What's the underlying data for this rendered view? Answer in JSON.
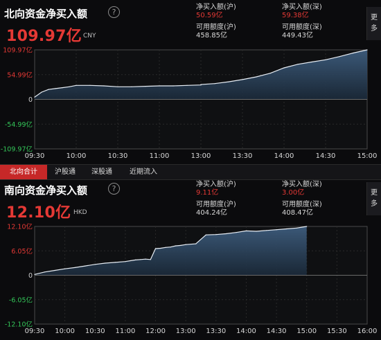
{
  "north": {
    "title": "北向资金净买入额",
    "help_glyph": "?",
    "amount": "109.97亿",
    "currency": "CNY",
    "sh_buy_label": "净买入额(沪)",
    "sh_buy_value": "50.59亿",
    "sz_buy_label": "净买入额(深)",
    "sz_buy_value": "59.38亿",
    "sh_quota_label": "可用额度(沪)",
    "sh_quota_value": "458.85亿",
    "sz_quota_label": "可用额度(深)",
    "sz_quota_value": "449.43亿",
    "more_label": "更多",
    "chart_data": {
      "type": "area",
      "y_ticks": [
        "109.97亿",
        "54.99亿",
        "0",
        "-54.99亿",
        "-109.97亿"
      ],
      "x_ticks": [
        "09:30",
        "10:00",
        "10:30",
        "11:00",
        "13:00",
        "13:30",
        "14:00",
        "14:30",
        "15:00"
      ],
      "ylim": [
        -109.97,
        109.97
      ],
      "y_unit": "亿",
      "x": [
        "09:30",
        "09:35",
        "09:40",
        "09:45",
        "09:50",
        "09:55",
        "10:00",
        "10:10",
        "10:20",
        "10:30",
        "10:40",
        "10:50",
        "11:00",
        "11:10",
        "11:20",
        "11:30",
        "13:00",
        "13:10",
        "13:20",
        "13:30",
        "13:40",
        "13:50",
        "14:00",
        "14:10",
        "14:20",
        "14:30",
        "14:40",
        "14:50",
        "15:00"
      ],
      "values": [
        5,
        16,
        22,
        24,
        26,
        28,
        31,
        31,
        30,
        28,
        28,
        29,
        30,
        30,
        31,
        32,
        33,
        35,
        39,
        44,
        50,
        58,
        70,
        78,
        83,
        88,
        95,
        103,
        109.97
      ]
    }
  },
  "tabs": [
    "北向合计",
    "沪股通",
    "深股通",
    "近期流入"
  ],
  "south": {
    "title": "南向资金净买入额",
    "help_glyph": "?",
    "amount": "12.10亿",
    "currency": "HKD",
    "sh_buy_label": "净买入额(沪)",
    "sh_buy_value": "9.11亿",
    "sz_buy_label": "净买入额(深)",
    "sz_buy_value": "3.00亿",
    "sh_quota_label": "可用额度(沪)",
    "sh_quota_value": "404.24亿",
    "sz_quota_label": "可用额度(深)",
    "sz_quota_value": "408.47亿",
    "more_label": "更多",
    "chart_data": {
      "type": "area",
      "y_ticks": [
        "12.10亿",
        "6.05亿",
        "0",
        "-6.05亿",
        "-12.10亿"
      ],
      "x_ticks": [
        "09:30",
        "10:00",
        "10:30",
        "11:00",
        "12:00",
        "13:00",
        "13:30",
        "14:00",
        "14:30",
        "15:00",
        "15:30",
        "16:00"
      ],
      "ylim": [
        -12.1,
        12.1
      ],
      "y_unit": "亿",
      "x": [
        "09:30",
        "09:40",
        "09:50",
        "10:00",
        "10:10",
        "10:20",
        "10:30",
        "10:40",
        "10:50",
        "11:00",
        "11:10",
        "11:20",
        "11:30",
        "11:40",
        "11:50",
        "12:00",
        "12:10",
        "12:20",
        "12:30",
        "12:40",
        "12:50",
        "13:00",
        "13:10",
        "13:20",
        "13:30",
        "13:40",
        "13:50",
        "14:00",
        "14:10",
        "14:20",
        "14:30",
        "14:40",
        "14:50",
        "15:00"
      ],
      "values": [
        0.2,
        0.8,
        1.2,
        1.6,
        1.9,
        2.3,
        2.7,
        3.0,
        3.2,
        3.4,
        3.6,
        3.8,
        3.9,
        4.0,
        3.9,
        6.6,
        6.7,
        6.9,
        7.0,
        7.3,
        7.4,
        7.6,
        7.8,
        10.0,
        10.1,
        10.3,
        10.6,
        11.0,
        10.9,
        11.1,
        11.3,
        11.5,
        11.7,
        12.1
      ]
    }
  }
}
